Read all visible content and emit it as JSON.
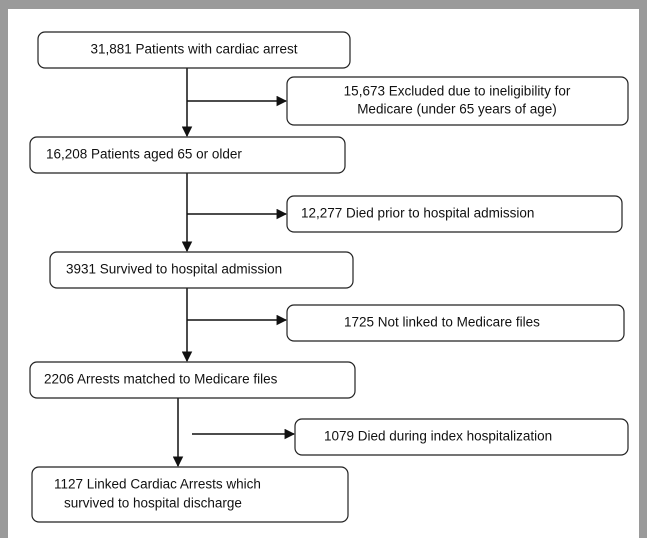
{
  "nodes": [
    {
      "lines": [
        "31,881 Patients with cardiac arrest"
      ]
    },
    {
      "lines": [
        "15,673 Excluded due to ineligibility for",
        "Medicare (under 65 years of age)"
      ]
    },
    {
      "lines": [
        "16,208 Patients aged 65 or older"
      ]
    },
    {
      "lines": [
        "12,277 Died prior to hospital admission"
      ]
    },
    {
      "lines": [
        "3931 Survived to hospital admission"
      ]
    },
    {
      "lines": [
        "1725 Not linked to Medicare files"
      ]
    },
    {
      "lines": [
        "2206 Arrests matched to Medicare files"
      ]
    },
    {
      "lines": [
        "1079 Died during index hospitalization"
      ]
    },
    {
      "lines": [
        "1127 Linked Cardiac Arrests which",
        "survived to hospital discharge"
      ]
    }
  ]
}
